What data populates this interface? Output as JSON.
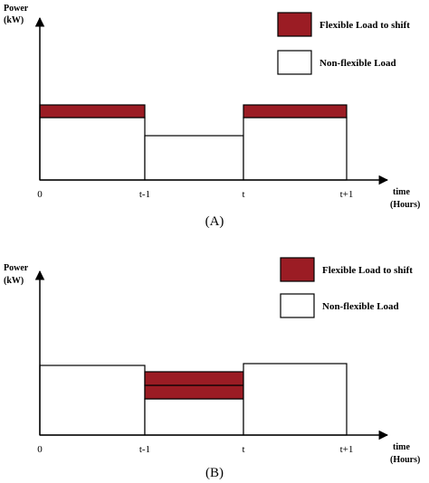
{
  "colors": {
    "flexible": "#9b1c24",
    "nonflexible": "#ffffff",
    "stroke": "#000000"
  },
  "panels": [
    {
      "id": "A",
      "y_label_line1": "Power",
      "y_label_line2": "(kW)",
      "x_label_line1": "time",
      "x_label_line2": "(Hours)",
      "ticks": [
        "0",
        "t-1",
        "t",
        "t+1"
      ],
      "caption": "(A)",
      "legend": {
        "flexible": "Flexible Load to shift",
        "nonflexible": "Non-flexible Load"
      },
      "chart_data": {
        "type": "bar",
        "categories": [
          "0 to t-1",
          "t-1 to t",
          "t to t+1"
        ],
        "series": [
          {
            "name": "Non-flexible Load",
            "values": [
              0.55,
              0.38,
              0.55
            ]
          },
          {
            "name": "Flexible Load to shift",
            "values": [
              0.1,
              0,
              0.1
            ]
          }
        ]
      }
    },
    {
      "id": "B",
      "y_label_line1": "Power",
      "y_label_line2": "(kW)",
      "x_label_line1": "time",
      "x_label_line2": "(Hours)",
      "ticks": [
        "0",
        "t-1",
        "t",
        "t+1"
      ],
      "caption": "(B)",
      "legend": {
        "flexible": "Flexible Load to shift",
        "nonflexible": "Non-flexible Load"
      },
      "chart_data": {
        "type": "bar",
        "categories": [
          "0 to t-1",
          "t-1 to t",
          "t to t+1"
        ],
        "series": [
          {
            "name": "Non-flexible Load",
            "values": [
              0.55,
              0.22,
              0.56
            ]
          },
          {
            "name": "Flexible Load to shift",
            "values": [
              0,
              0.33,
              0
            ]
          }
        ]
      }
    }
  ]
}
